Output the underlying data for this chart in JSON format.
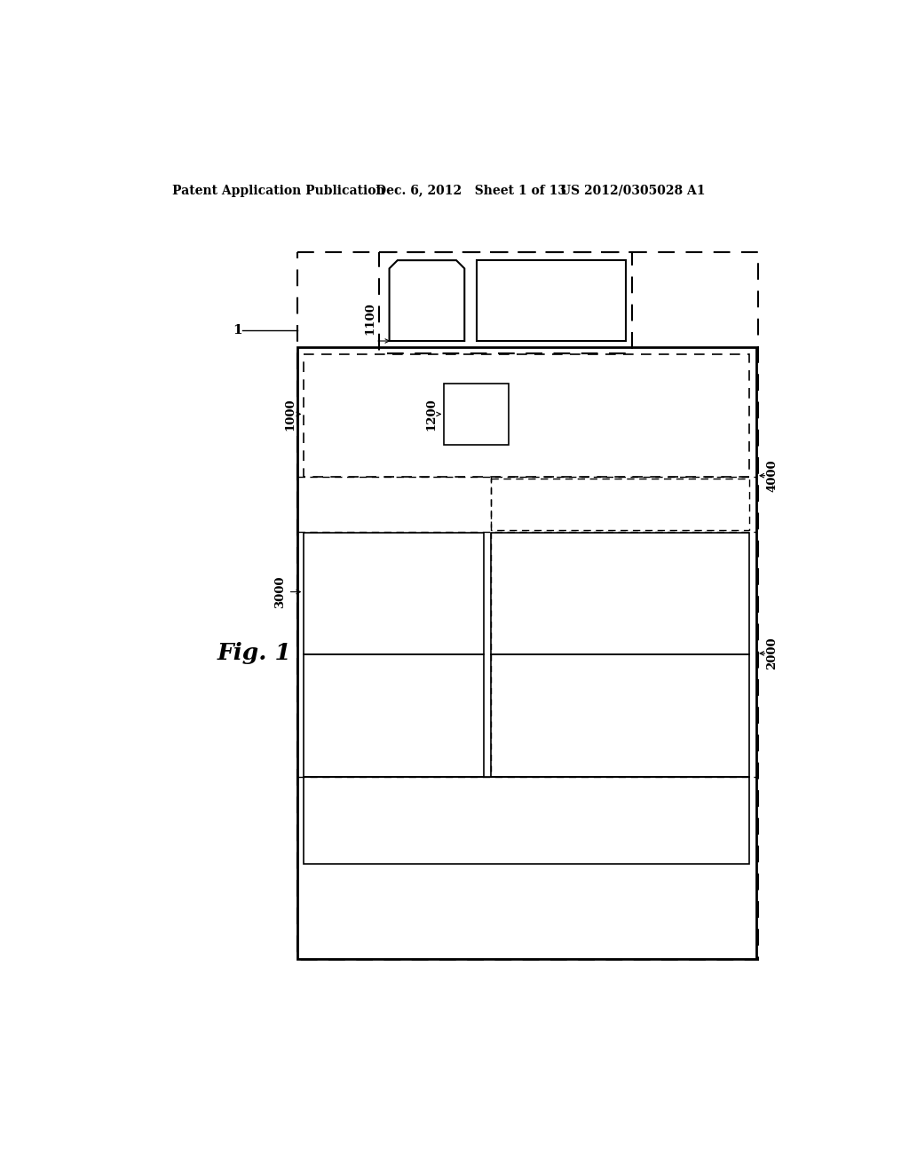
{
  "bg_color": "#ffffff",
  "header_text_left": "Patent Application Publication",
  "header_text_mid": "Dec. 6, 2012   Sheet 1 of 13",
  "header_text_right": "US 2012/0305028 A1",
  "fig_label": "Fig. 1",
  "label_1": "1",
  "label_1000": "1000",
  "label_1100": "1100",
  "label_1200": "1200",
  "label_2000": "2000",
  "label_3000": "3000",
  "label_4000": "4000",
  "line_color": "#000000"
}
